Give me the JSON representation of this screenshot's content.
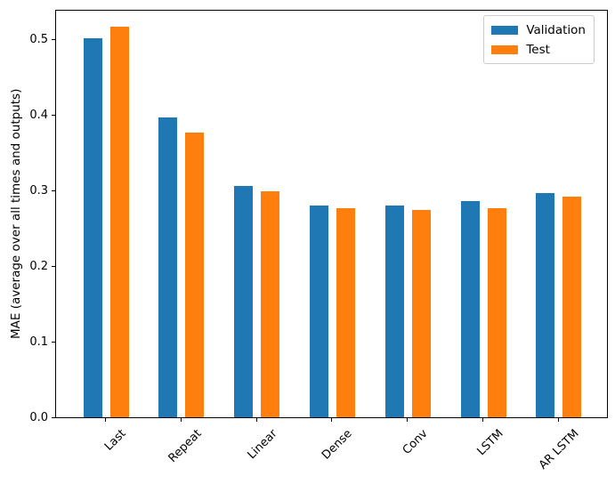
{
  "figure": {
    "background": "#ffffff"
  },
  "chart_data": {
    "type": "bar",
    "title": "",
    "xlabel": "",
    "ylabel": "MAE (average over all times and outputs)",
    "categories": [
      "Last",
      "Repeat",
      "Linear",
      "Dense",
      "Conv",
      "LSTM",
      "AR LSTM"
    ],
    "series": [
      {
        "name": "Validation",
        "color": "#1f77b4",
        "values": [
          0.501,
          0.396,
          0.306,
          0.28,
          0.28,
          0.286,
          0.297
        ]
      },
      {
        "name": "Test",
        "color": "#ff7f0e",
        "values": [
          0.516,
          0.377,
          0.299,
          0.276,
          0.274,
          0.277,
          0.292
        ]
      }
    ],
    "ylim": [
      0,
      0.54
    ],
    "yticks": [
      "0.0",
      "0.1",
      "0.2",
      "0.3",
      "0.4",
      "0.5"
    ],
    "xtick_rotation": 45,
    "grid": false,
    "legend_position": "upper right"
  },
  "legend": {
    "items": [
      {
        "label": "Validation",
        "color": "#1f77b4"
      },
      {
        "label": "Test",
        "color": "#ff7f0e"
      }
    ]
  }
}
